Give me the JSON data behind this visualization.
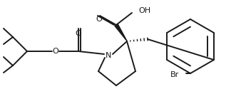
{
  "bg_color": "#ffffff",
  "line_color": "#1a1a1a",
  "line_width": 1.4,
  "figsize": [
    3.38,
    1.46
  ],
  "dpi": 100,
  "xlim": [
    0,
    338
  ],
  "ylim": [
    0,
    146
  ]
}
